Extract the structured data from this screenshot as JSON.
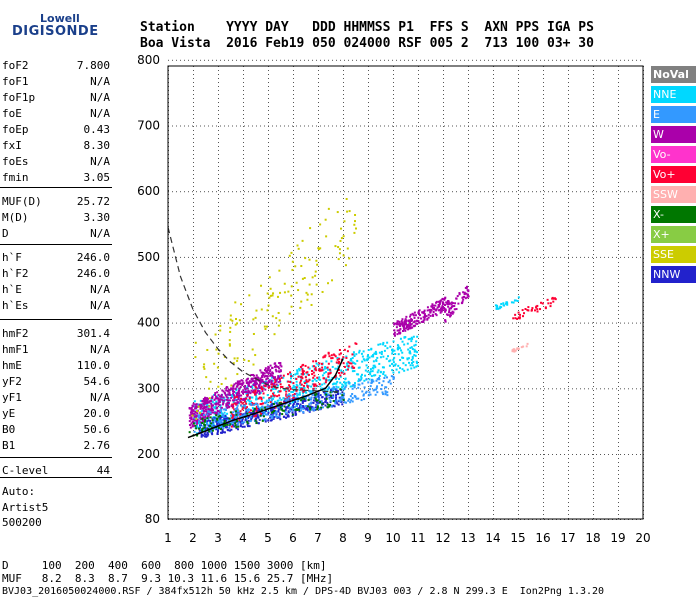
{
  "logo": {
    "top": "Lowell",
    "bottom": "DIGISONDE"
  },
  "header": {
    "line1": "Station    YYYY DAY   DDD HHMMSS P1  FFS S  AXN PPS IGA PS",
    "line2": "Boa Vista  2016 Feb19 050 024000 RSF 005 2  713 100 03+ 30"
  },
  "params": [
    {
      "label": "foF2",
      "value": "7.800"
    },
    {
      "label": "foF1",
      "value": "N/A"
    },
    {
      "label": "foF1p",
      "value": "N/A"
    },
    {
      "label": "foE",
      "value": "N/A"
    },
    {
      "label": "foEp",
      "value": "0.43"
    },
    {
      "label": "fxI",
      "value": "8.30"
    },
    {
      "label": "foEs",
      "value": "N/A"
    },
    {
      "label": "fmin",
      "value": "3.05"
    },
    {
      "label": "MUF(D)",
      "value": "25.72"
    },
    {
      "label": "M(D)",
      "value": "3.30"
    },
    {
      "label": "D",
      "value": "N/A"
    },
    {
      "label": "h`F",
      "value": "246.0"
    },
    {
      "label": "h`F2",
      "value": "246.0"
    },
    {
      "label": "h`E",
      "value": "N/A"
    },
    {
      "label": "h`Es",
      "value": "N/A"
    },
    {
      "label": "hmF2",
      "value": "301.4"
    },
    {
      "label": "hmF1",
      "value": "N/A"
    },
    {
      "label": "hmE",
      "value": "110.0"
    },
    {
      "label": "yF2",
      "value": "54.6"
    },
    {
      "label": "yF1",
      "value": "N/A"
    },
    {
      "label": "yE",
      "value": "20.0"
    },
    {
      "label": "B0",
      "value": "50.6"
    },
    {
      "label": "B1",
      "value": "2.76"
    },
    {
      "label": "C-level",
      "value": "44"
    }
  ],
  "auto": {
    "line1": "Auto:",
    "line2": "Artist5",
    "line3": "500200"
  },
  "legend": [
    {
      "label": "NoVal",
      "color": "#808080"
    },
    {
      "label": "NNE",
      "color": "#00d8ff"
    },
    {
      "label": "E",
      "color": "#3399ff"
    },
    {
      "label": "W",
      "color": "#aa00aa"
    },
    {
      "label": "Vo-",
      "color": "#ff33cc"
    },
    {
      "label": "Vo+",
      "color": "#ff0033"
    },
    {
      "label": "SSW",
      "color": "#ffb0b0"
    },
    {
      "label": "X-",
      "color": "#007700"
    },
    {
      "label": "X+",
      "color": "#88cc44"
    },
    {
      "label": "SSE",
      "color": "#cccc00"
    },
    {
      "label": "NNW",
      "color": "#2222cc"
    }
  ],
  "bottom": {
    "line1": "D     100  200  400  600  800 1000 1500 3000 [km]",
    "line2": "MUF   8.2  8.3  8.7  9.3 10.3 11.6 15.6 25.7 [MHz]",
    "line3": "BVJ03_2016050024000.RSF / 384fx512h 50 kHz 2.5 km / DPS-4D BVJ03 003 / 2.8 N 299.3 E  Ion2Png 1.3.20"
  },
  "chart_data": {
    "type": "scatter",
    "xlim": [
      1,
      20
    ],
    "ylim": [
      80,
      900
    ],
    "xticks": [
      1,
      2,
      3,
      4,
      5,
      6,
      7,
      8,
      9,
      10,
      11,
      12,
      13,
      14,
      15,
      16,
      17,
      18,
      19,
      20
    ],
    "yticks": [
      80,
      200,
      300,
      400,
      500,
      600,
      700,
      800,
      900
    ],
    "grid": true,
    "profile": {
      "x": [
        1.0,
        1.5,
        2.0,
        2.5,
        3.0,
        3.5,
        4.0,
        4.5,
        5.0,
        5.5,
        6.0,
        7.0,
        8.0
      ],
      "y": [
        545,
        470,
        420,
        385,
        360,
        340,
        325,
        315,
        305,
        300,
        298,
        296,
        294
      ]
    },
    "trace": {
      "x": [
        1.8,
        2.5,
        3.5,
        4.5,
        5.5,
        6.5,
        7.3,
        7.7,
        8.0
      ],
      "y": [
        225,
        235,
        250,
        262,
        275,
        288,
        300,
        320,
        345
      ]
    },
    "clusters": [
      {
        "name": "NNE",
        "x0": 2.0,
        "x1": 11.0,
        "y0": 230,
        "y1": 380,
        "n": 700
      },
      {
        "name": "NNW",
        "x0": 2.2,
        "x1": 8.0,
        "y0": 225,
        "y1": 300,
        "n": 450
      },
      {
        "name": "W",
        "x0": 1.8,
        "x1": 5.5,
        "y0": 240,
        "y1": 340,
        "n": 500
      },
      {
        "name": "W",
        "x0": 10.0,
        "x1": 12.2,
        "y0": 380,
        "y1": 440,
        "n": 200
      },
      {
        "name": "Vo+",
        "x0": 3.5,
        "x1": 8.5,
        "y0": 240,
        "y1": 370,
        "n": 260
      },
      {
        "name": "E",
        "x0": 2.0,
        "x1": 10.0,
        "y0": 230,
        "y1": 320,
        "n": 320
      },
      {
        "name": "X-",
        "x0": 1.8,
        "x1": 8.0,
        "y0": 225,
        "y1": 300,
        "n": 120
      },
      {
        "name": "SSE",
        "x0": 1.9,
        "x1": 8.5,
        "y0": 240,
        "y1": 600,
        "n": 150
      },
      {
        "name": "W",
        "x0": 12.0,
        "x1": 13.0,
        "y0": 400,
        "y1": 460,
        "n": 60
      },
      {
        "name": "Vo+",
        "x0": 14.5,
        "x1": 16.5,
        "y0": 400,
        "y1": 440,
        "n": 40
      },
      {
        "name": "SSW",
        "x0": 14.7,
        "x1": 15.4,
        "y0": 355,
        "y1": 370,
        "n": 20
      },
      {
        "name": "NNE",
        "x0": 14.0,
        "x1": 15.0,
        "y0": 420,
        "y1": 440,
        "n": 25
      }
    ]
  }
}
